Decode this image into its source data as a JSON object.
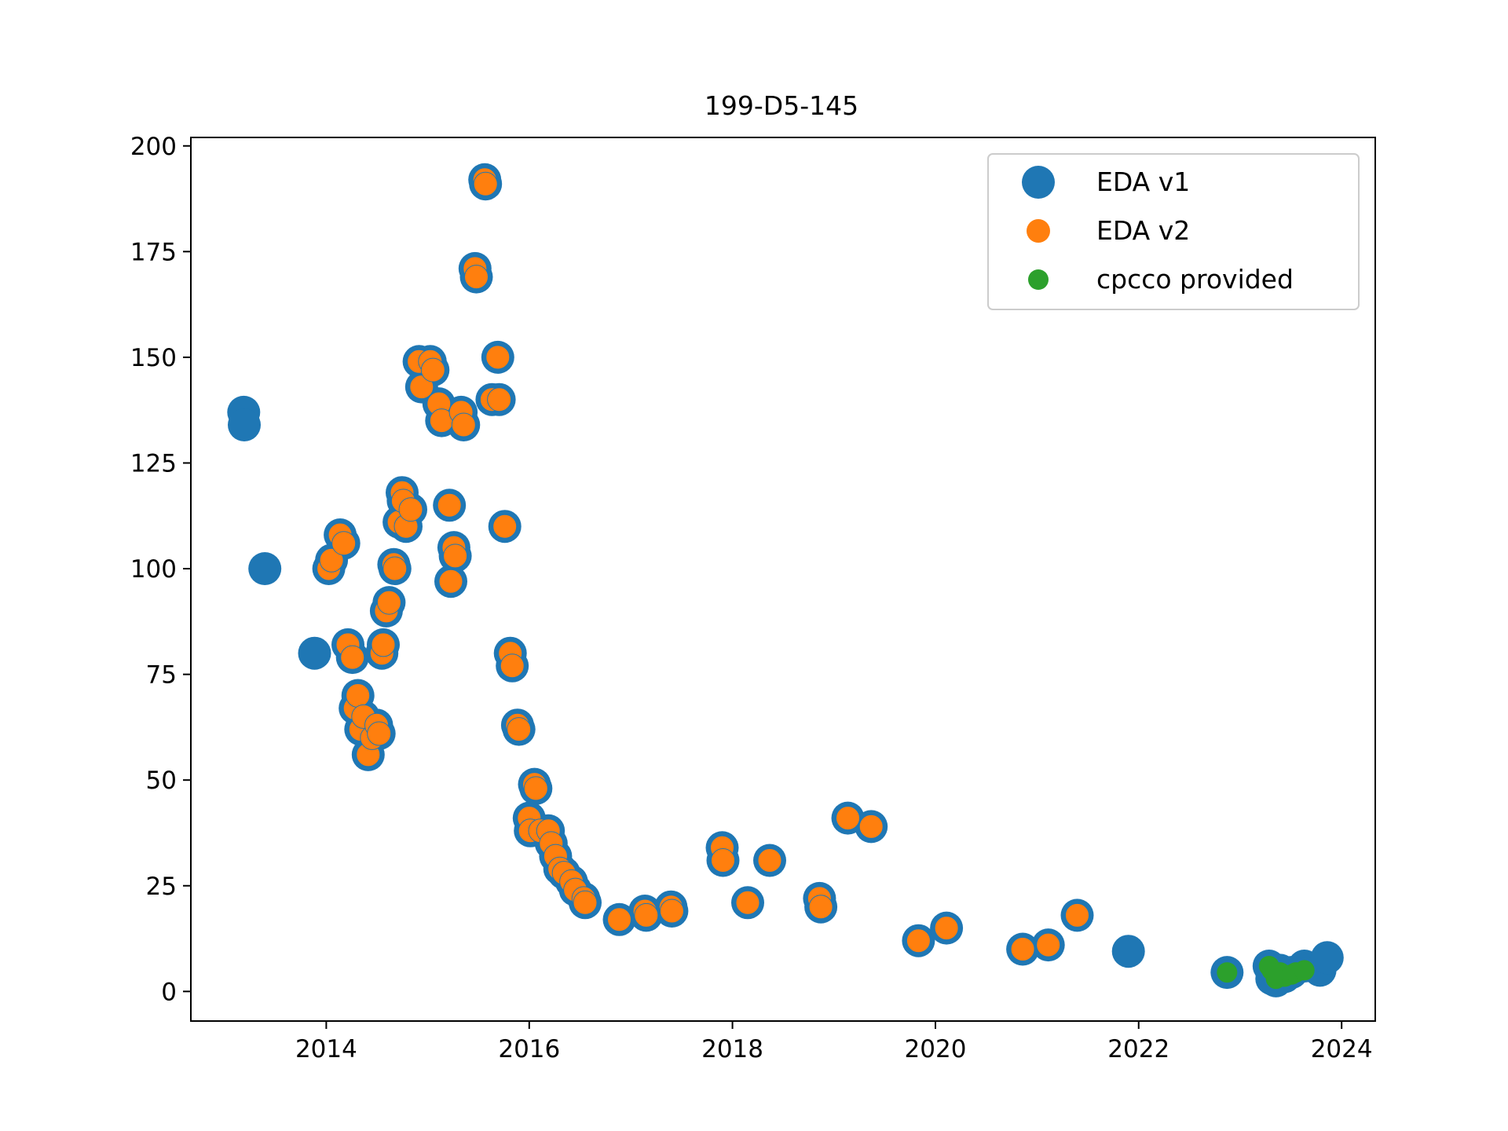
{
  "chart_data": {
    "type": "scatter",
    "title": "199-D5-145",
    "xlabel": "",
    "ylabel": "",
    "x_axis_type": "date",
    "xlim": [
      "2012-09-01",
      "2024-05-01"
    ],
    "ylim": [
      -7,
      202
    ],
    "x_ticks": [
      "2014",
      "2016",
      "2018",
      "2020",
      "2022",
      "2024"
    ],
    "x_tick_dates": [
      "2014-01-01",
      "2016-01-01",
      "2018-01-01",
      "2020-01-01",
      "2022-01-01",
      "2024-01-01"
    ],
    "y_ticks": [
      "0",
      "25",
      "50",
      "75",
      "100",
      "125",
      "150",
      "175",
      "200"
    ],
    "y_tick_values": [
      0,
      25,
      50,
      75,
      100,
      125,
      150,
      175,
      200
    ],
    "grid": false,
    "legend": {
      "placement": "upper right",
      "entries": [
        {
          "label": "EDA v1",
          "color": "#1f77b4"
        },
        {
          "label": "EDA v2",
          "color": "#ff7f0e"
        },
        {
          "label": "cpcco provided",
          "color": "#2ca02c"
        }
      ]
    },
    "series": [
      {
        "name": "EDA v1",
        "color": "#1f77b4",
        "points": [
          [
            "2013-03-10",
            137
          ],
          [
            "2013-03-12",
            134
          ],
          [
            "2013-05-25",
            100
          ],
          [
            "2013-11-20",
            80
          ],
          [
            "2014-01-10",
            100
          ],
          [
            "2014-01-20",
            102
          ],
          [
            "2014-02-20",
            108
          ],
          [
            "2014-03-05",
            106
          ],
          [
            "2014-03-20",
            82
          ],
          [
            "2014-04-05",
            79
          ],
          [
            "2014-04-15",
            67
          ],
          [
            "2014-04-25",
            70
          ],
          [
            "2014-05-05",
            62
          ],
          [
            "2014-05-15",
            65
          ],
          [
            "2014-06-01",
            56
          ],
          [
            "2014-06-15",
            60
          ],
          [
            "2014-07-01",
            63
          ],
          [
            "2014-07-10",
            61
          ],
          [
            "2014-07-20",
            80
          ],
          [
            "2014-07-25",
            82
          ],
          [
            "2014-08-05",
            90
          ],
          [
            "2014-08-15",
            92
          ],
          [
            "2014-09-01",
            101
          ],
          [
            "2014-09-05",
            100
          ],
          [
            "2014-09-20",
            111
          ],
          [
            "2014-10-01",
            118
          ],
          [
            "2014-10-05",
            116
          ],
          [
            "2014-10-15",
            110
          ],
          [
            "2014-11-01",
            114
          ],
          [
            "2014-12-01",
            149
          ],
          [
            "2014-12-10",
            143
          ],
          [
            "2015-01-10",
            149
          ],
          [
            "2015-01-20",
            147
          ],
          [
            "2015-02-10",
            139
          ],
          [
            "2015-02-20",
            135
          ],
          [
            "2015-03-20",
            115
          ],
          [
            "2015-03-25",
            97
          ],
          [
            "2015-04-05",
            105
          ],
          [
            "2015-04-10",
            103
          ],
          [
            "2015-05-01",
            137
          ],
          [
            "2015-05-10",
            134
          ],
          [
            "2015-06-20",
            171
          ],
          [
            "2015-06-25",
            169
          ],
          [
            "2015-07-25",
            192
          ],
          [
            "2015-07-28",
            191
          ],
          [
            "2015-08-20",
            140
          ],
          [
            "2015-09-10",
            150
          ],
          [
            "2015-09-15",
            140
          ],
          [
            "2015-10-05",
            110
          ],
          [
            "2015-10-25",
            80
          ],
          [
            "2015-11-01",
            77
          ],
          [
            "2015-11-20",
            63
          ],
          [
            "2015-11-25",
            62
          ],
          [
            "2016-01-01",
            41
          ],
          [
            "2016-01-05",
            38
          ],
          [
            "2016-01-20",
            49
          ],
          [
            "2016-01-25",
            48
          ],
          [
            "2016-02-10",
            38
          ],
          [
            "2016-03-10",
            38
          ],
          [
            "2016-03-20",
            35
          ],
          [
            "2016-04-05",
            32
          ],
          [
            "2016-04-20",
            29
          ],
          [
            "2016-05-05",
            28
          ],
          [
            "2016-06-01",
            26
          ],
          [
            "2016-06-15",
            24
          ],
          [
            "2016-07-15",
            22
          ],
          [
            "2016-07-20",
            21
          ],
          [
            "2016-11-20",
            17
          ],
          [
            "2017-02-20",
            19
          ],
          [
            "2017-02-25",
            18
          ],
          [
            "2017-05-25",
            20
          ],
          [
            "2017-05-28",
            19
          ],
          [
            "2017-11-25",
            34
          ],
          [
            "2017-11-28",
            31
          ],
          [
            "2018-02-25",
            21
          ],
          [
            "2018-05-15",
            31
          ],
          [
            "2018-11-10",
            22
          ],
          [
            "2018-11-15",
            20
          ],
          [
            "2019-02-20",
            41
          ],
          [
            "2019-05-15",
            39
          ],
          [
            "2019-11-01",
            12
          ],
          [
            "2020-02-10",
            15
          ],
          [
            "2020-11-10",
            10
          ],
          [
            "2021-02-10",
            11
          ],
          [
            "2021-05-25",
            18
          ],
          [
            "2021-11-25",
            9.5
          ],
          [
            "2022-11-15",
            4.5
          ],
          [
            "2023-04-15",
            6
          ],
          [
            "2023-04-25",
            3
          ],
          [
            "2023-05-10",
            2.5
          ],
          [
            "2023-05-25",
            5
          ],
          [
            "2023-06-10",
            3.5
          ],
          [
            "2023-07-05",
            4.5
          ],
          [
            "2023-08-20",
            6
          ],
          [
            "2023-10-15",
            5
          ],
          [
            "2023-11-10",
            8
          ]
        ]
      },
      {
        "name": "EDA v2",
        "color": "#ff7f0e",
        "points": [
          [
            "2014-01-10",
            100
          ],
          [
            "2014-01-20",
            102
          ],
          [
            "2014-02-20",
            108
          ],
          [
            "2014-03-05",
            106
          ],
          [
            "2014-03-20",
            82
          ],
          [
            "2014-04-05",
            79
          ],
          [
            "2014-04-15",
            67
          ],
          [
            "2014-04-25",
            70
          ],
          [
            "2014-05-05",
            62
          ],
          [
            "2014-05-15",
            65
          ],
          [
            "2014-06-01",
            56
          ],
          [
            "2014-06-15",
            60
          ],
          [
            "2014-07-01",
            63
          ],
          [
            "2014-07-10",
            61
          ],
          [
            "2014-07-20",
            80
          ],
          [
            "2014-07-25",
            82
          ],
          [
            "2014-08-05",
            90
          ],
          [
            "2014-08-15",
            92
          ],
          [
            "2014-09-01",
            101
          ],
          [
            "2014-09-05",
            100
          ],
          [
            "2014-09-20",
            111
          ],
          [
            "2014-10-01",
            118
          ],
          [
            "2014-10-05",
            116
          ],
          [
            "2014-10-15",
            110
          ],
          [
            "2014-11-01",
            114
          ],
          [
            "2014-12-01",
            149
          ],
          [
            "2014-12-10",
            143
          ],
          [
            "2015-01-10",
            149
          ],
          [
            "2015-01-20",
            147
          ],
          [
            "2015-02-10",
            139
          ],
          [
            "2015-02-20",
            135
          ],
          [
            "2015-03-20",
            115
          ],
          [
            "2015-03-25",
            97
          ],
          [
            "2015-04-05",
            105
          ],
          [
            "2015-04-10",
            103
          ],
          [
            "2015-05-01",
            137
          ],
          [
            "2015-05-10",
            134
          ],
          [
            "2015-06-20",
            171
          ],
          [
            "2015-06-25",
            169
          ],
          [
            "2015-07-25",
            192
          ],
          [
            "2015-07-28",
            191
          ],
          [
            "2015-08-20",
            140
          ],
          [
            "2015-09-10",
            150
          ],
          [
            "2015-09-15",
            140
          ],
          [
            "2015-10-05",
            110
          ],
          [
            "2015-10-25",
            80
          ],
          [
            "2015-11-01",
            77
          ],
          [
            "2015-11-20",
            63
          ],
          [
            "2015-11-25",
            62
          ],
          [
            "2016-01-01",
            41
          ],
          [
            "2016-01-05",
            38
          ],
          [
            "2016-01-20",
            49
          ],
          [
            "2016-01-25",
            48
          ],
          [
            "2016-02-10",
            38
          ],
          [
            "2016-03-10",
            38
          ],
          [
            "2016-03-20",
            35
          ],
          [
            "2016-04-05",
            32
          ],
          [
            "2016-04-20",
            29
          ],
          [
            "2016-05-05",
            28
          ],
          [
            "2016-06-01",
            26
          ],
          [
            "2016-06-15",
            24
          ],
          [
            "2016-07-15",
            22
          ],
          [
            "2016-07-20",
            21
          ],
          [
            "2016-11-20",
            17
          ],
          [
            "2017-02-20",
            19
          ],
          [
            "2017-02-25",
            18
          ],
          [
            "2017-05-25",
            20
          ],
          [
            "2017-05-28",
            19
          ],
          [
            "2017-11-25",
            34
          ],
          [
            "2017-11-28",
            31
          ],
          [
            "2018-02-25",
            21
          ],
          [
            "2018-05-15",
            31
          ],
          [
            "2018-11-10",
            22
          ],
          [
            "2018-11-15",
            20
          ],
          [
            "2019-02-20",
            41
          ],
          [
            "2019-05-15",
            39
          ],
          [
            "2019-11-01",
            12
          ],
          [
            "2020-02-10",
            15
          ],
          [
            "2020-11-10",
            10
          ],
          [
            "2021-02-10",
            11
          ],
          [
            "2021-05-25",
            18
          ]
        ]
      },
      {
        "name": "cpcco provided",
        "color": "#2ca02c",
        "points": [
          [
            "2022-11-15",
            4.5
          ],
          [
            "2023-04-15",
            6
          ],
          [
            "2023-04-25",
            5
          ],
          [
            "2023-05-10",
            3
          ],
          [
            "2023-05-25",
            4.5
          ],
          [
            "2023-06-10",
            3.5
          ],
          [
            "2023-07-05",
            4
          ],
          [
            "2023-07-20",
            4.5
          ],
          [
            "2023-08-20",
            5
          ]
        ]
      }
    ]
  }
}
